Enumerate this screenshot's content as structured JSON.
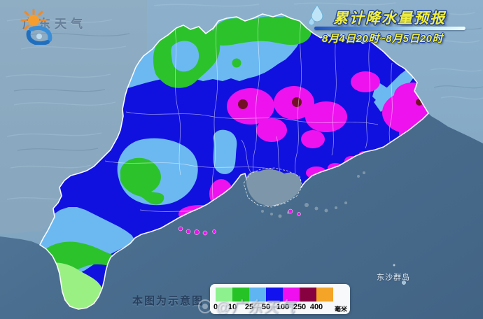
{
  "branding": {
    "logo_text": "广东天气"
  },
  "header": {
    "title": "累计降水量预报",
    "date_range": "8月4日20时~8月5日20时"
  },
  "map": {
    "island_label": "东沙群岛",
    "note": "本图为示意图"
  },
  "legend": {
    "unit": "毫米",
    "tick_labels": [
      "0",
      "10",
      "25",
      "50",
      "100",
      "250",
      "400"
    ],
    "colors": [
      "#8df28d",
      "#25c325",
      "#5fb4f2",
      "#1212ef",
      "#ef0fef",
      "#870040",
      "#f4a427"
    ]
  },
  "watermark": {
    "handle": "@广东天气"
  }
}
